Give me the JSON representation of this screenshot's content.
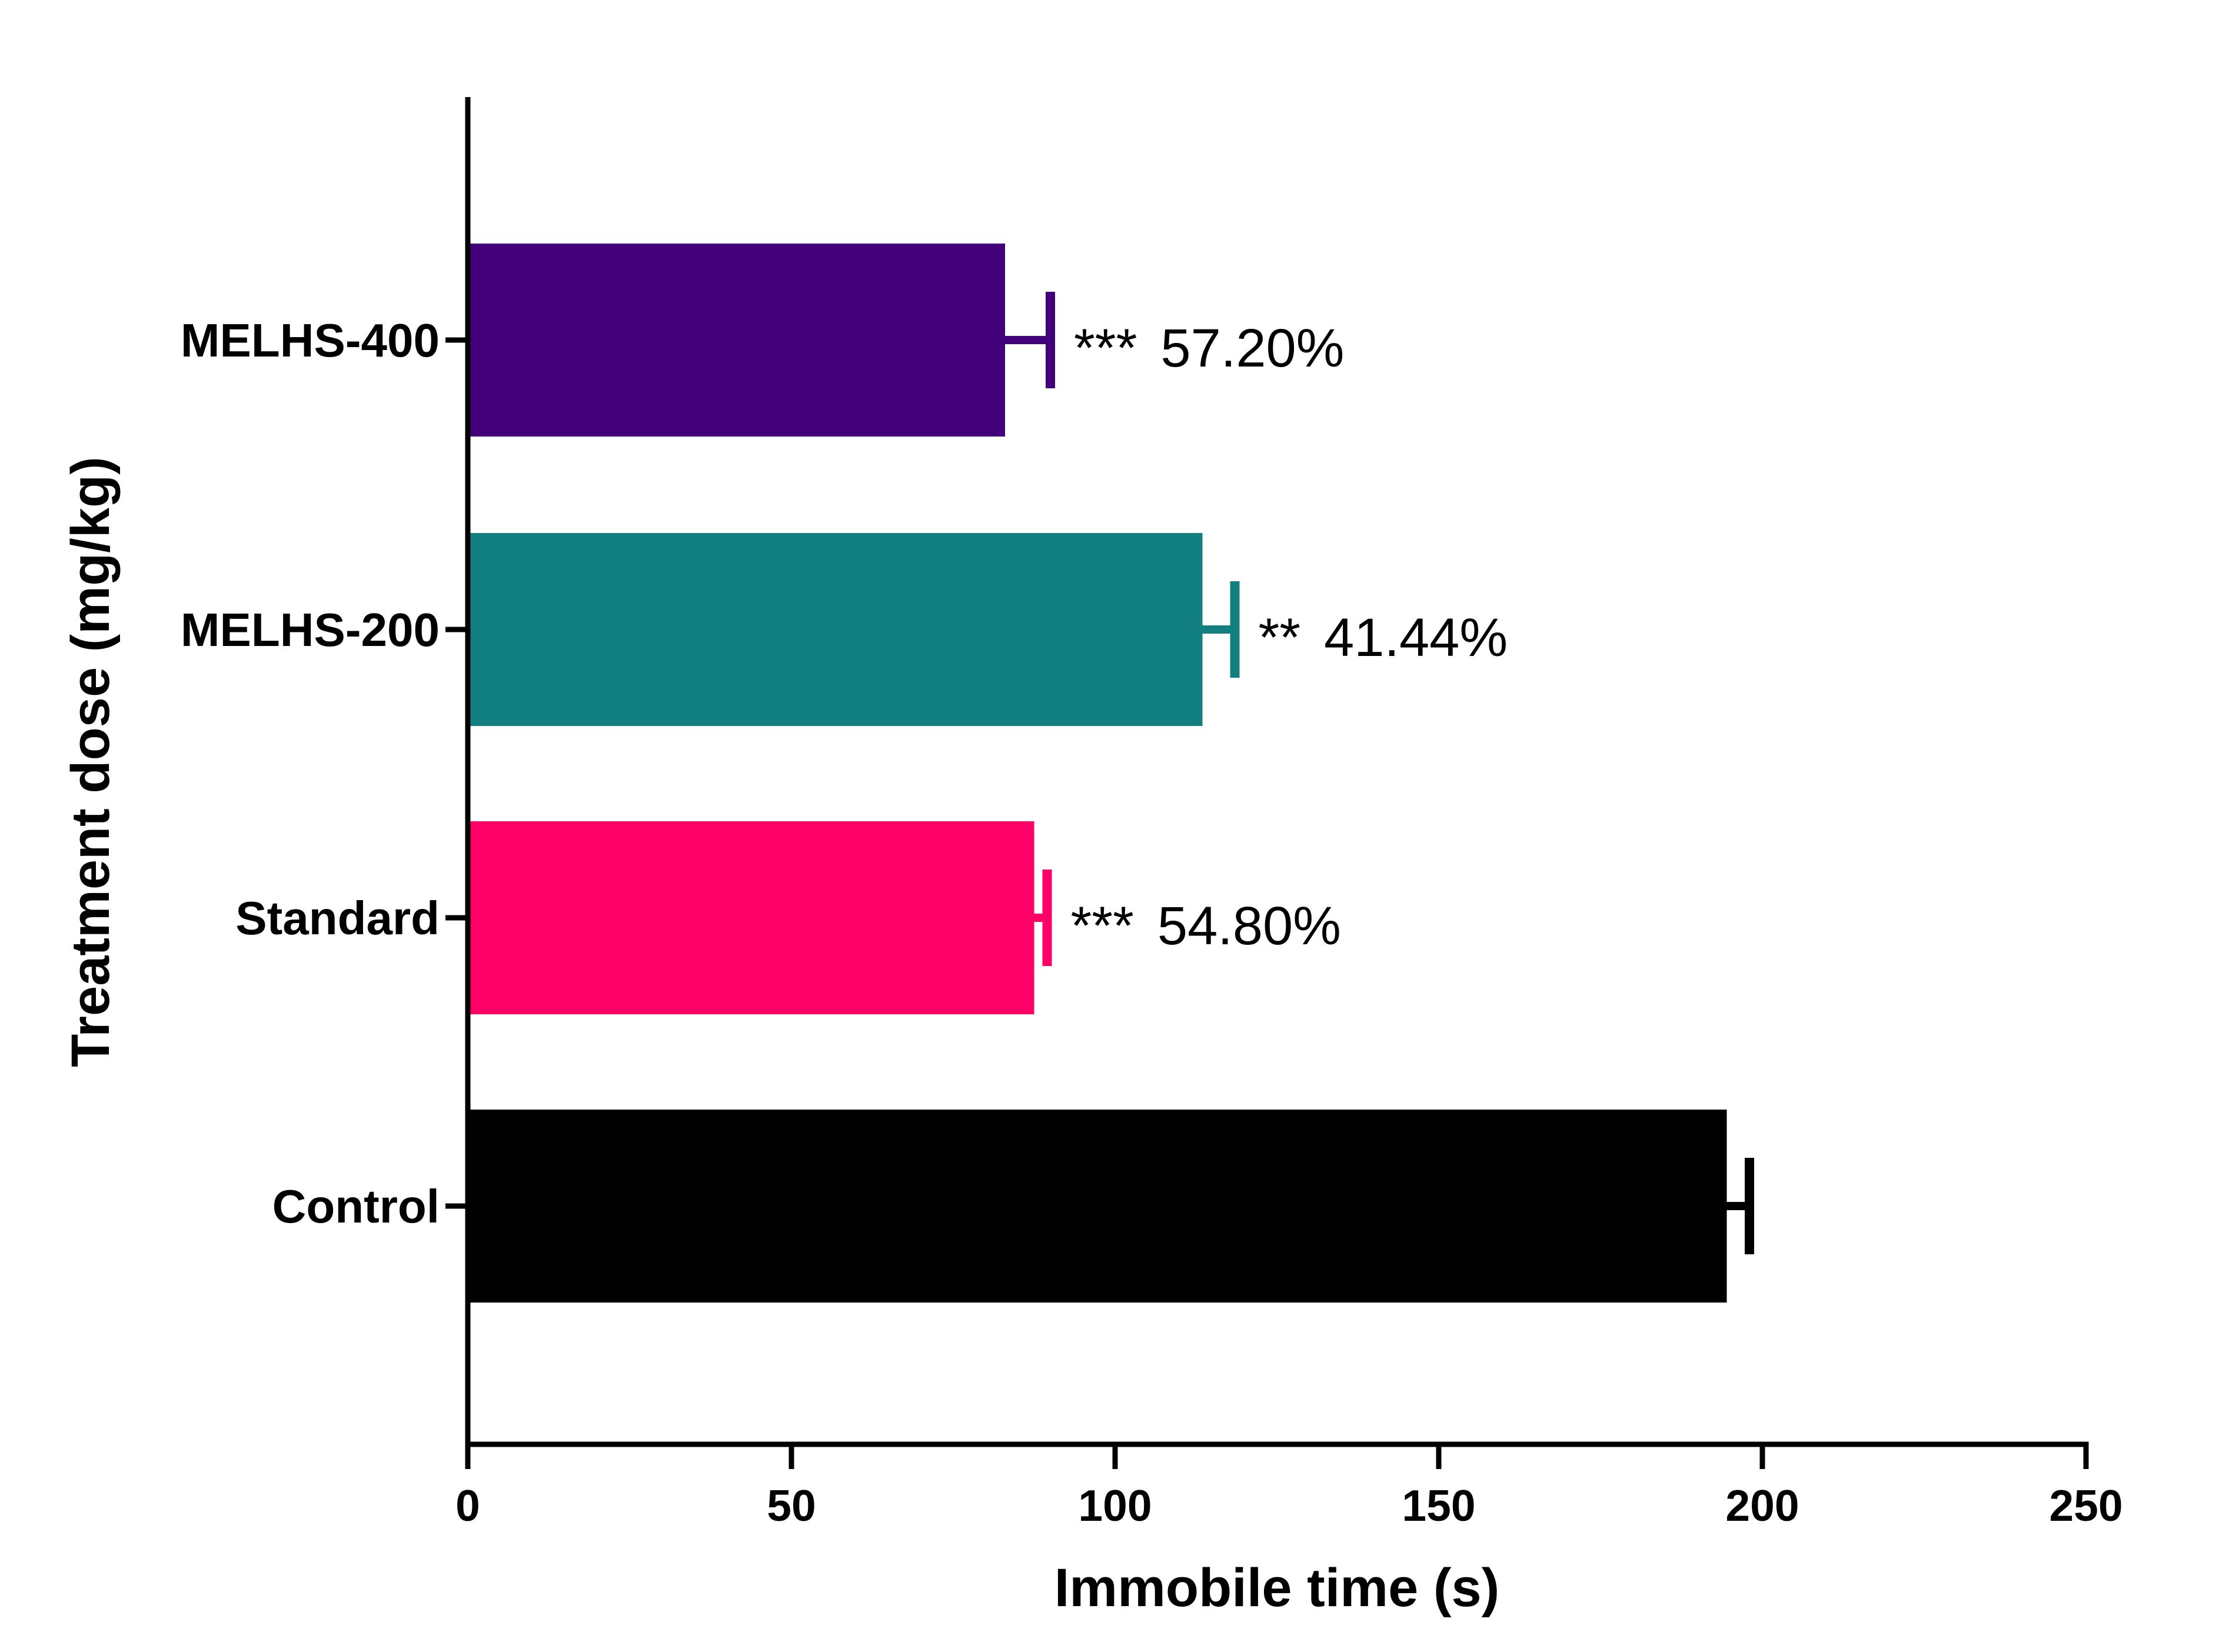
{
  "chart_data": {
    "type": "bar",
    "orientation": "horizontal",
    "xlabel": "Immobile time (s)",
    "ylabel": "Treatment dose (mg/kg)",
    "xlim": [
      0,
      250
    ],
    "xticks": [
      "0",
      "50",
      "100",
      "150",
      "200",
      "250"
    ],
    "grid": false,
    "categories": [
      "MELHS-400",
      "MELHS-200",
      "Standard",
      "Control"
    ],
    "values": [
      83,
      113.5,
      87.5,
      194.5
    ],
    "errors": [
      7,
      5,
      2,
      3.5
    ],
    "colors": [
      "#42007A",
      "#128080",
      "#FF0066",
      "#000000"
    ],
    "annotations": [
      {
        "stars": "***",
        "text": "57.20%"
      },
      {
        "stars": "**",
        "text": "41.44%"
      },
      {
        "stars": "***",
        "text": "54.80%"
      },
      {
        "stars": "",
        "text": ""
      }
    ]
  }
}
